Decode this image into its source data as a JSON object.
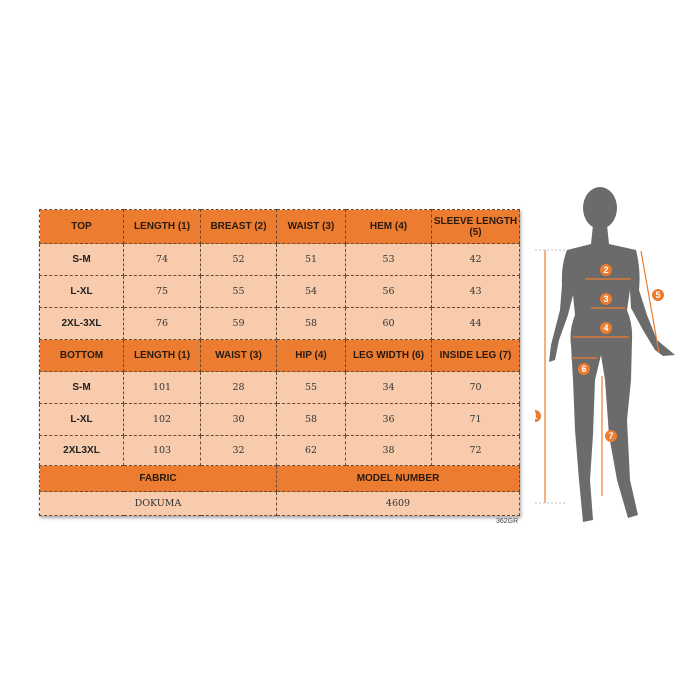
{
  "top_table": {
    "headers": [
      "TOP",
      "LENGTH (1)",
      "BREAST (2)",
      "WAIST (3)",
      "HEM (4)",
      "SLEEVE LENGTH (5)"
    ],
    "rows": [
      [
        "S-M",
        "74",
        "52",
        "51",
        "53",
        "42"
      ],
      [
        "L-XL",
        "75",
        "55",
        "54",
        "56",
        "43"
      ],
      [
        "2XL-3XL",
        "76",
        "59",
        "58",
        "60",
        "44"
      ]
    ]
  },
  "bottom_table": {
    "headers": [
      "BOTTOM",
      "LENGTH (1)",
      "WAIST (3)",
      "HIP (4)",
      "LEG WIDTH (6)",
      "INSIDE LEG (7)"
    ],
    "rows": [
      [
        "S-M",
        "101",
        "28",
        "55",
        "34",
        "70"
      ],
      [
        "L-XL",
        "102",
        "30",
        "58",
        "36",
        "71"
      ],
      [
        "2XL3XL",
        "103",
        "32",
        "62",
        "38",
        "72"
      ]
    ]
  },
  "info": {
    "fabric_label": "FABRIC",
    "fabric_value": "DOKUMA",
    "model_label": "MODEL NUMBER",
    "model_value": "4609"
  },
  "code": "362GR",
  "diagram_markers": [
    "1",
    "2",
    "3",
    "4",
    "5",
    "6",
    "7"
  ],
  "colors": {
    "header": "#ec7c30",
    "cell": "#f8cbad",
    "silhouette": "#6b6b6b",
    "marker": "#ec7c30"
  }
}
